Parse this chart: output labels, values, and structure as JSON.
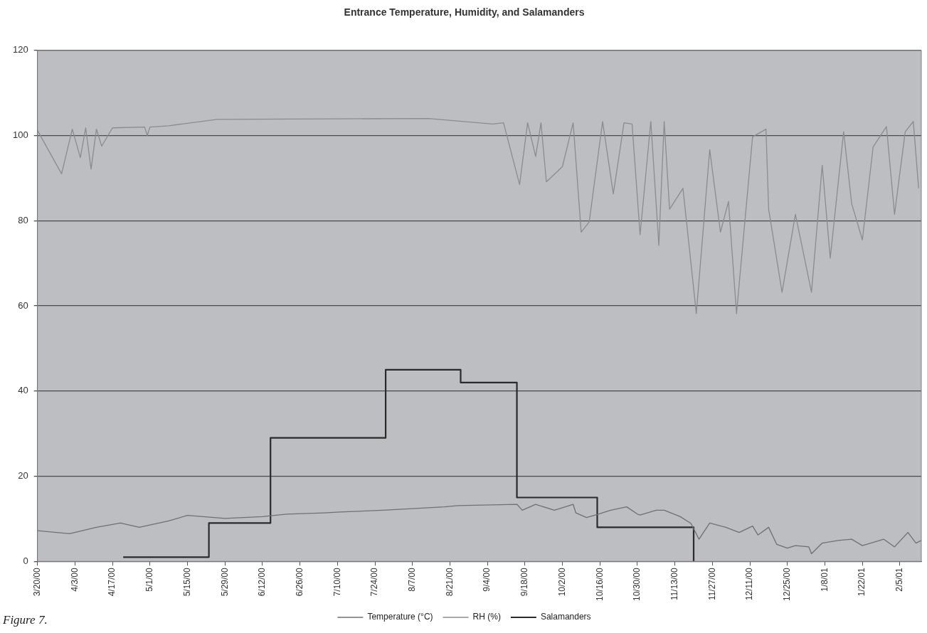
{
  "chart_data": {
    "type": "line",
    "title": "Entrance Temperature, Humidity, and Salamanders",
    "annotations": [
      "Figure 7."
    ],
    "xlim": [
      "2000-03-20",
      "2001-02-13"
    ],
    "xticks": [
      {
        "value": "2000-03-20",
        "label": "3/20/00"
      },
      {
        "value": "2000-04-03",
        "label": "4/3/00"
      },
      {
        "value": "2000-04-17",
        "label": "4/17/00"
      },
      {
        "value": "2000-05-01",
        "label": "5/1/00"
      },
      {
        "value": "2000-05-15",
        "label": "5/15/00"
      },
      {
        "value": "2000-05-29",
        "label": "5/29/00"
      },
      {
        "value": "2000-06-12",
        "label": "6/12/00"
      },
      {
        "value": "2000-06-26",
        "label": "6/26/00"
      },
      {
        "value": "2000-07-10",
        "label": "7/10/00"
      },
      {
        "value": "2000-07-24",
        "label": "7/24/00"
      },
      {
        "value": "2000-08-07",
        "label": "8/7/00"
      },
      {
        "value": "2000-08-21",
        "label": "8/21/00"
      },
      {
        "value": "2000-09-04",
        "label": "9/4/00"
      },
      {
        "value": "2000-09-18",
        "label": "9/18/00"
      },
      {
        "value": "2000-10-02",
        "label": "10/2/00"
      },
      {
        "value": "2000-10-16",
        "label": "10/16/00"
      },
      {
        "value": "2000-10-30",
        "label": "10/30/00"
      },
      {
        "value": "2000-11-13",
        "label": "11/13/00"
      },
      {
        "value": "2000-11-27",
        "label": "11/27/00"
      },
      {
        "value": "2000-12-11",
        "label": "12/11/00"
      },
      {
        "value": "2000-12-25",
        "label": "12/25/00"
      },
      {
        "value": "2001-01-08",
        "label": "1/8/01"
      },
      {
        "value": "2001-01-22",
        "label": "1/22/01"
      },
      {
        "value": "2001-02-05",
        "label": "2/5/01"
      }
    ],
    "ylim": [
      0,
      120
    ],
    "yticks": [
      0,
      20,
      40,
      60,
      80,
      100,
      120
    ],
    "grid": "y",
    "legend": "bottom",
    "marker": "none",
    "series": [
      {
        "name": "Temperature (°C)",
        "color": "#6e7074",
        "x": [
          "2000-03-20",
          "2000-04-01",
          "2000-04-11",
          "2000-04-20",
          "2000-04-27",
          "2000-05-08",
          "2000-05-15",
          "2000-05-29",
          "2000-06-12",
          "2000-06-21",
          "2000-07-05",
          "2000-07-11",
          "2000-07-27",
          "2000-08-19",
          "2000-08-24",
          "2000-09-15",
          "2000-09-17",
          "2000-09-22",
          "2000-09-29",
          "2000-10-06",
          "2000-10-07",
          "2000-10-11",
          "2000-10-15",
          "2000-10-20",
          "2000-10-26",
          "2000-10-30",
          "2000-10-31",
          "2000-11-06",
          "2000-11-09",
          "2000-11-15",
          "2000-11-19",
          "2000-11-22",
          "2000-11-26",
          "2000-12-02",
          "2000-12-07",
          "2000-12-12",
          "2000-12-14",
          "2000-12-18",
          "2000-12-21",
          "2000-12-25",
          "2000-12-28",
          "2001-01-02",
          "2001-01-03",
          "2001-01-07",
          "2001-01-13",
          "2001-01-18",
          "2001-01-22",
          "2001-01-30",
          "2001-02-03",
          "2001-02-08",
          "2001-02-11",
          "2001-02-13"
        ],
        "values": [
          7.2,
          6.5,
          8,
          9,
          8,
          9.5,
          10.8,
          10.1,
          10.5,
          11.1,
          11.4,
          11.6,
          12,
          12.8,
          13.1,
          13.4,
          12,
          13.4,
          12,
          13.4,
          11.4,
          10.3,
          11,
          12,
          12.8,
          11.1,
          10.9,
          12,
          12,
          10.5,
          8.9,
          5.2,
          9,
          8,
          6.8,
          8.3,
          6.2,
          8,
          4,
          3.1,
          3.7,
          3.4,
          1.8,
          4.3,
          4.9,
          5.2,
          3.7,
          5.2,
          3.4,
          6.8,
          4.3,
          4.9
        ]
      },
      {
        "name": "RH (%)",
        "color": "#8a8c90",
        "x": [
          "2000-03-20",
          "2000-03-29",
          "2000-04-02",
          "2000-04-05",
          "2000-04-07",
          "2000-04-09",
          "2000-04-11",
          "2000-04-13",
          "2000-04-17",
          "2000-04-29",
          "2000-04-30",
          "2000-05-01",
          "2000-05-08",
          "2000-05-26",
          "2000-08-13",
          "2000-09-06",
          "2000-09-10",
          "2000-09-16",
          "2000-09-19",
          "2000-09-22",
          "2000-09-24",
          "2000-09-26",
          "2000-10-02",
          "2000-10-06",
          "2000-10-09",
          "2000-10-12",
          "2000-10-17",
          "2000-10-21",
          "2000-10-25",
          "2000-10-28",
          "2000-10-31",
          "2000-11-04",
          "2000-11-07",
          "2000-11-09",
          "2000-11-11",
          "2000-11-16",
          "2000-11-21",
          "2000-11-26",
          "2000-11-30",
          "2000-12-03",
          "2000-12-06",
          "2000-12-12",
          "2000-12-17",
          "2000-12-18",
          "2000-12-23",
          "2000-12-28",
          "2001-01-03",
          "2001-01-07",
          "2001-01-10",
          "2001-01-15",
          "2001-01-18",
          "2001-01-22",
          "2001-01-26",
          "2001-01-31",
          "2001-02-03",
          "2001-02-07",
          "2001-02-10",
          "2001-02-12"
        ],
        "values": [
          101.2,
          91,
          101.5,
          94.8,
          101.8,
          92.1,
          101.5,
          97.5,
          101.8,
          102,
          100,
          102,
          102.3,
          103.8,
          104,
          102.7,
          103,
          88.5,
          103,
          95.1,
          103,
          89.1,
          92.7,
          103,
          77.3,
          79.7,
          103.3,
          86.3,
          103,
          102.7,
          76.7,
          103.3,
          74.2,
          103.3,
          82.7,
          87.6,
          58.2,
          96.7,
          77.3,
          84.5,
          58.2,
          99.7,
          101.5,
          82.7,
          63.2,
          81.5,
          63.2,
          93,
          71.2,
          100.9,
          84,
          75.5,
          97.3,
          102.1,
          81.5,
          100.9,
          103.3,
          87.6
        ]
      },
      {
        "name": "Salamanders",
        "type": "step",
        "color": "#2a2a2a",
        "x": [
          "2000-04-21",
          "2000-05-23",
          "2000-06-15",
          "2000-07-28",
          "2000-08-25",
          "2000-09-15",
          "2000-10-15",
          "2000-11-20"
        ],
        "values": [
          1,
          9,
          29,
          45,
          42,
          15,
          8,
          0
        ]
      }
    ]
  }
}
